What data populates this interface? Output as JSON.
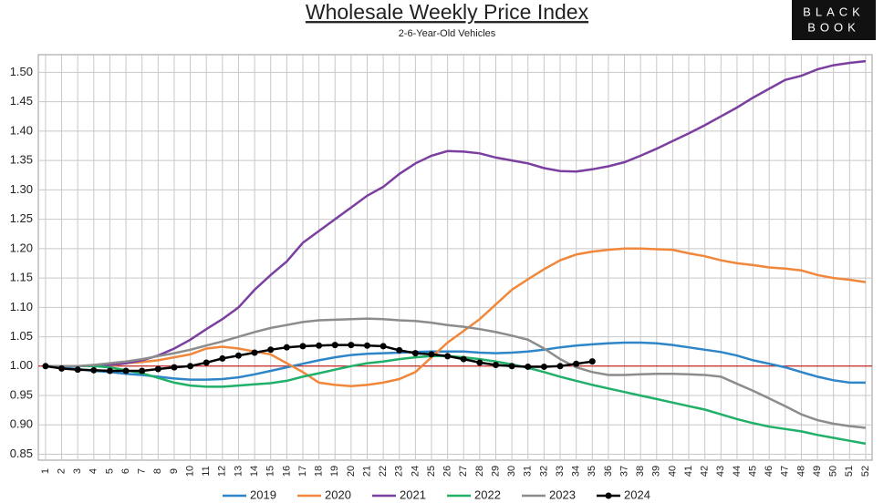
{
  "chart_data": {
    "type": "line",
    "title": "Wholesale Weekly Price Index",
    "subtitle": "2-6-Year-Old Vehicles",
    "logo": [
      "BLACK",
      "BOOK"
    ],
    "x": [
      1,
      2,
      3,
      4,
      5,
      6,
      7,
      8,
      9,
      10,
      11,
      12,
      13,
      14,
      15,
      16,
      17,
      18,
      19,
      20,
      21,
      22,
      23,
      24,
      25,
      26,
      27,
      28,
      29,
      30,
      31,
      32,
      33,
      34,
      35,
      36,
      37,
      38,
      39,
      40,
      41,
      42,
      43,
      44,
      45,
      46,
      47,
      48,
      49,
      50,
      51,
      52
    ],
    "xlim": [
      0.55,
      52.4
    ],
    "xticks": [
      1,
      2,
      3,
      4,
      5,
      6,
      7,
      8,
      9,
      10,
      11,
      12,
      13,
      14,
      15,
      16,
      17,
      18,
      19,
      20,
      21,
      22,
      23,
      24,
      25,
      26,
      27,
      28,
      29,
      30,
      31,
      32,
      33,
      34,
      35,
      36,
      37,
      38,
      39,
      40,
      41,
      42,
      43,
      44,
      45,
      46,
      47,
      48,
      49,
      50,
      51,
      52
    ],
    "ylim": [
      0.84,
      1.53
    ],
    "yticks": [
      0.85,
      {
        "value": 0.9,
        "label": "0.90"
      },
      0.95,
      {
        "value": 1.0,
        "label": "1.00"
      },
      1.05,
      {
        "value": 1.1,
        "label": "1.10"
      },
      1.15,
      {
        "value": 1.2,
        "label": "1.20"
      },
      1.25,
      {
        "value": 1.3,
        "label": "1.30"
      },
      1.35,
      {
        "value": 1.4,
        "label": "1.40"
      },
      1.45,
      {
        "value": 1.5,
        "label": "1.50"
      }
    ],
    "grid": true,
    "reference_line": {
      "value": 1.0,
      "color": "#c00000"
    },
    "legend": "bottom",
    "series": [
      {
        "name": "2019",
        "color": "#2e86c8",
        "values": [
          1.0,
          0.998,
          0.995,
          0.992,
          0.99,
          0.987,
          0.985,
          0.982,
          0.979,
          0.977,
          0.977,
          0.978,
          0.981,
          0.986,
          0.992,
          0.998,
          1.004,
          1.01,
          1.015,
          1.019,
          1.021,
          1.022,
          1.023,
          1.024,
          1.025,
          1.025,
          1.025,
          1.023,
          1.022,
          1.023,
          1.025,
          1.028,
          1.032,
          1.035,
          1.037,
          1.039,
          1.04,
          1.04,
          1.039,
          1.036,
          1.032,
          1.028,
          1.024,
          1.018,
          1.01,
          1.004,
          0.998,
          0.99,
          0.982,
          0.976,
          0.972,
          0.972
        ]
      },
      {
        "name": "2020",
        "color": "#f0873a",
        "values": [
          1.0,
          1.0,
          1.0,
          1.0,
          1.0,
          1.005,
          1.007,
          1.01,
          1.015,
          1.02,
          1.03,
          1.033,
          1.03,
          1.025,
          1.02,
          1.005,
          0.99,
          0.972,
          0.968,
          0.966,
          0.968,
          0.972,
          0.978,
          0.99,
          1.015,
          1.04,
          1.06,
          1.08,
          1.105,
          1.13,
          1.148,
          1.165,
          1.18,
          1.19,
          1.195,
          1.198,
          1.2,
          1.2,
          1.199,
          1.198,
          1.192,
          1.187,
          1.18,
          1.175,
          1.172,
          1.168,
          1.166,
          1.163,
          1.155,
          1.15,
          1.147,
          1.143
        ]
      },
      {
        "name": "2021",
        "color": "#7b3fa0",
        "values": [
          1.0,
          1.0,
          1.0,
          1.0,
          1.002,
          1.005,
          1.01,
          1.018,
          1.03,
          1.045,
          1.063,
          1.08,
          1.1,
          1.13,
          1.155,
          1.178,
          1.21,
          1.23,
          1.25,
          1.27,
          1.29,
          1.305,
          1.327,
          1.345,
          1.358,
          1.366,
          1.365,
          1.362,
          1.355,
          1.35,
          1.345,
          1.337,
          1.332,
          1.331,
          1.335,
          1.34,
          1.347,
          1.358,
          1.37,
          1.383,
          1.396,
          1.41,
          1.425,
          1.44,
          1.457,
          1.472,
          1.487,
          1.494,
          1.505,
          1.512,
          1.516,
          1.519
        ]
      },
      {
        "name": "2022",
        "color": "#20b068",
        "values": [
          1.0,
          1.0,
          1.0,
          1.0,
          0.998,
          0.993,
          0.988,
          0.98,
          0.972,
          0.967,
          0.965,
          0.965,
          0.967,
          0.969,
          0.971,
          0.975,
          0.982,
          0.988,
          0.994,
          1.0,
          1.005,
          1.008,
          1.012,
          1.015,
          1.017,
          1.017,
          1.015,
          1.012,
          1.008,
          1.003,
          0.997,
          0.99,
          0.982,
          0.975,
          0.968,
          0.962,
          0.956,
          0.95,
          0.944,
          0.938,
          0.932,
          0.926,
          0.918,
          0.91,
          0.903,
          0.897,
          0.893,
          0.889,
          0.883,
          0.878,
          0.873,
          0.868
        ]
      },
      {
        "name": "2023",
        "color": "#8c8c8c",
        "values": [
          1.0,
          1.0,
          1.0,
          1.002,
          1.005,
          1.008,
          1.012,
          1.017,
          1.022,
          1.028,
          1.035,
          1.042,
          1.05,
          1.058,
          1.065,
          1.07,
          1.075,
          1.078,
          1.079,
          1.08,
          1.081,
          1.08,
          1.078,
          1.077,
          1.074,
          1.07,
          1.067,
          1.063,
          1.058,
          1.052,
          1.045,
          1.03,
          1.012,
          0.998,
          0.99,
          0.985,
          0.985,
          0.986,
          0.987,
          0.987,
          0.986,
          0.985,
          0.982,
          0.97,
          0.958,
          0.945,
          0.932,
          0.918,
          0.908,
          0.902,
          0.898,
          0.895
        ]
      },
      {
        "name": "2024",
        "color": "#000000",
        "markers": true,
        "values": [
          1.0,
          0.996,
          0.994,
          0.993,
          0.992,
          0.992,
          0.992,
          0.995,
          0.998,
          1.0,
          1.006,
          1.013,
          1.018,
          1.023,
          1.028,
          1.032,
          1.034,
          1.035,
          1.036,
          1.036,
          1.035,
          1.034,
          1.027,
          1.022,
          1.02,
          1.017,
          1.012,
          1.006,
          1.002,
          1.0,
          0.999,
          0.999,
          1.0,
          1.004,
          1.008,
          null,
          null,
          null,
          null,
          null,
          null,
          null,
          null,
          null,
          null,
          null,
          null,
          null,
          null,
          null,
          null,
          null
        ]
      }
    ]
  }
}
